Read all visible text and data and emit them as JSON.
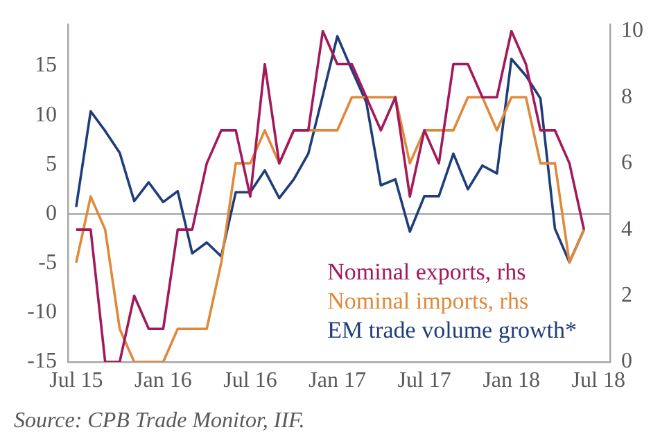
{
  "chart_data": {
    "type": "line",
    "x": [
      "2015-07",
      "2015-08",
      "2015-09",
      "2015-10",
      "2015-11",
      "2015-12",
      "2016-01",
      "2016-02",
      "2016-03",
      "2016-04",
      "2016-05",
      "2016-06",
      "2016-07",
      "2016-08",
      "2016-09",
      "2016-10",
      "2016-11",
      "2016-12",
      "2017-01",
      "2017-02",
      "2017-03",
      "2017-04",
      "2017-05",
      "2017-06",
      "2017-07",
      "2017-08",
      "2017-09",
      "2017-10",
      "2017-11",
      "2017-12",
      "2018-01",
      "2018-02",
      "2018-03",
      "2018-04",
      "2018-05",
      "2018-06"
    ],
    "series": [
      {
        "name": "Nominal exports, rhs",
        "color": "#a3195b",
        "axis": "y2",
        "values": [
          4,
          4,
          0,
          0,
          2,
          1,
          1,
          4,
          4,
          6,
          7,
          7,
          5,
          9,
          6,
          7,
          7,
          10,
          9,
          9,
          8,
          7,
          8,
          5,
          7,
          6,
          9,
          9,
          8,
          8,
          10,
          9,
          7,
          7,
          6,
          4
        ]
      },
      {
        "name": "Nominal imports, rhs",
        "color": "#e0893a",
        "axis": "y2",
        "values": [
          3,
          5,
          4,
          1,
          0,
          0,
          0,
          1,
          1,
          1,
          3,
          6,
          6,
          7,
          6,
          7,
          7,
          7,
          7,
          8,
          8,
          8,
          8,
          6,
          7,
          7,
          7,
          8,
          8,
          7,
          8,
          8,
          6,
          6,
          3,
          4
        ]
      },
      {
        "name": "EM trade volume growth*",
        "color": "#1f3d7a",
        "values": [
          0.7,
          10.4,
          8.4,
          6.2,
          1.3,
          3.2,
          1.2,
          2.3,
          -4.0,
          -2.9,
          -4.3,
          2.2,
          2.2,
          4.4,
          1.6,
          3.5,
          6.1,
          12,
          18.0,
          14.6,
          11.3,
          2.9,
          3.5,
          -1.8,
          1.8,
          1.8,
          6.1,
          2.5,
          4.9,
          4.1,
          15.7,
          14.0,
          11.7,
          -1.5,
          -4.9,
          -1.6
        ]
      }
    ],
    "xlim": [
      "2015-06-14",
      "2018-07-25"
    ],
    "xticks": [
      {
        "value": "2015-07",
        "label": "Jul 15"
      },
      {
        "value": "2016-01",
        "label": "Jan 16"
      },
      {
        "value": "2016-07",
        "label": "Jul 16"
      },
      {
        "value": "2017-01",
        "label": "Jan 17"
      },
      {
        "value": "2017-07",
        "label": "Jul 17"
      },
      {
        "value": "2018-01",
        "label": "Jan 18"
      },
      {
        "value": "2018-07",
        "label": "Jul 18"
      }
    ],
    "ylim": [
      -15,
      19.2
    ],
    "yticks": [
      -15,
      -10,
      -5,
      0,
      5,
      10,
      15
    ],
    "y2lim": [
      0,
      10.2
    ],
    "y2ticks": [
      0,
      2,
      4,
      6,
      8,
      10
    ],
    "ref_lines": [
      {
        "axis": "y",
        "value": 0,
        "color": "#a6a6a6"
      }
    ],
    "grid": false,
    "legend": "bottom right",
    "marker": "none",
    "line_style": "solid",
    "annotations": [
      "Source: CPB Trade Monitor, IIF."
    ]
  }
}
